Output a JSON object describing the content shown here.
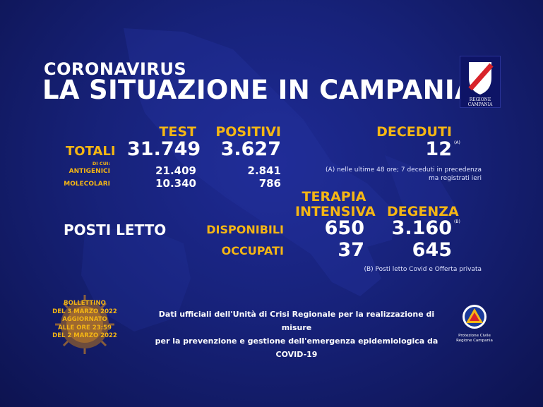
{
  "header": {
    "subtitle": "CORONAVIRUS",
    "title": "LA SITUAZIONE IN CAMPANIA",
    "logo_caption": "REGIONE CAMPANIA"
  },
  "totals": {
    "row_label": "TOTALI",
    "test_header": "TEST",
    "positivi_header": "POSITIVI",
    "test_total": "31.749",
    "positivi_total": "3.627",
    "di_cui": "DI CUI:",
    "antigenici_label": "ANTIGENICI",
    "antigenici_test": "21.409",
    "antigenici_positivi": "2.841",
    "molecolari_label": "MOLECOLARI",
    "molecolari_test": "10.340",
    "molecolari_positivi": "786"
  },
  "deceduti": {
    "header": "DECEDUTI",
    "value": "12",
    "marker": "(A)",
    "note_line1": "(A) nelle ultime 48 ore; 7 deceduti in precedenza",
    "note_line2": "ma registrati ieri"
  },
  "posti_letto": {
    "label": "POSTI LETTO",
    "ti_header_line1": "TERAPIA",
    "ti_header_line2": "INTENSIVA",
    "degenza_header": "DEGENZA",
    "disponibili_label": "DISPONIBILI",
    "occupati_label": "OCCUPATI",
    "ti_disponibili": "650",
    "degenza_disponibili": "3.160",
    "degenza_marker": "(B)",
    "ti_occupati": "37",
    "degenza_occupati": "645",
    "note": "(B) Posti letto Covid e Offerta privata"
  },
  "bulletin": {
    "line1": "BOLLETTINO",
    "line2": "DEL 3 MARZO 2022",
    "line3": "AGGIORNATO",
    "line4": "ALLE ORE 23:59",
    "line5": "DEL 2 MARZO 2022"
  },
  "footer": {
    "line1": "Dati ufficiali dell'Unità di Crisi Regionale per la realizzazione di misure",
    "line2": "per la prevenzione e gestione dell'emergenza epidemiologica da COVID-19"
  },
  "protezione_civile": {
    "line1": "Protezione Civile",
    "line2": "Regione Campania"
  },
  "colors": {
    "background": "#17227a",
    "accent": "#f5b614",
    "text": "#ffffff"
  }
}
